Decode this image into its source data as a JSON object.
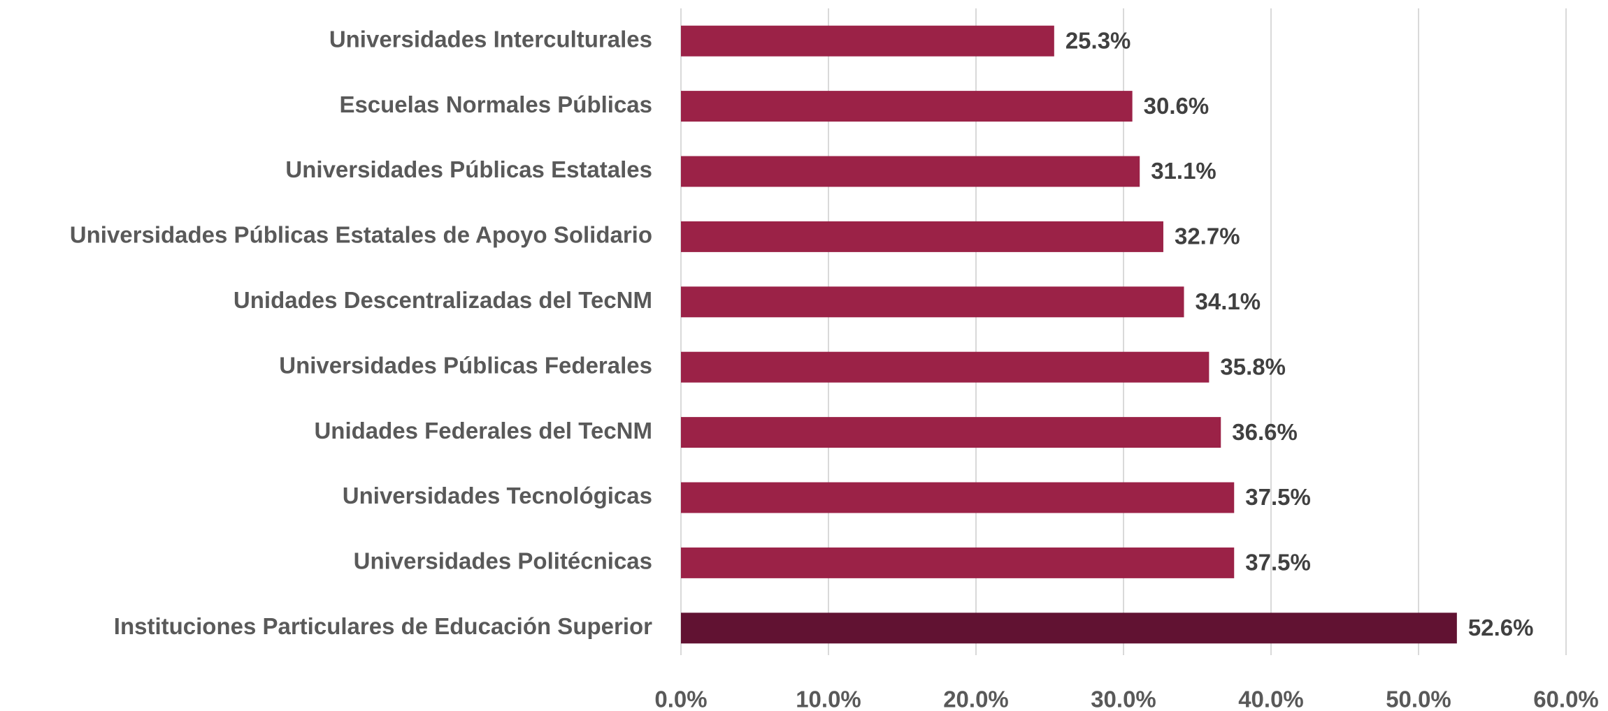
{
  "chart_data": {
    "type": "hbar",
    "categories": [
      "Universidades Interculturales",
      "Escuelas Normales Públicas",
      "Universidades Públicas Estatales",
      "Universidades Públicas Estatales de Apoyo Solidario",
      "Unidades Descentralizadas del TecNM",
      "Universidades Públicas Federales",
      "Unidades Federales del TecNM",
      "Universidades Tecnológicas",
      "Universidades Politécnicas",
      "Instituciones Particulares de Educación Superior"
    ],
    "values": [
      25.3,
      30.6,
      31.1,
      32.7,
      34.1,
      35.8,
      36.6,
      37.5,
      37.5,
      52.6
    ],
    "value_labels": [
      "25.3%",
      "30.6%",
      "31.1%",
      "32.7%",
      "34.1%",
      "35.8%",
      "36.6%",
      "37.5%",
      "37.5%",
      "52.6%"
    ],
    "colors": [
      "#9b2247",
      "#9b2247",
      "#9b2247",
      "#9b2247",
      "#9b2247",
      "#9b2247",
      "#9b2247",
      "#9b2247",
      "#9b2247",
      "#611232"
    ],
    "xlim": [
      0,
      60
    ],
    "xticks": [
      {
        "value": 0,
        "label": "0.0%"
      },
      {
        "value": 10,
        "label": "10.0%"
      },
      {
        "value": 20,
        "label": "20.0%"
      },
      {
        "value": 30,
        "label": "30.0%"
      },
      {
        "value": 40,
        "label": "40.0%"
      },
      {
        "value": 50,
        "label": "50.0%"
      },
      {
        "value": 60,
        "label": "60.0%"
      }
    ],
    "grid": true
  }
}
